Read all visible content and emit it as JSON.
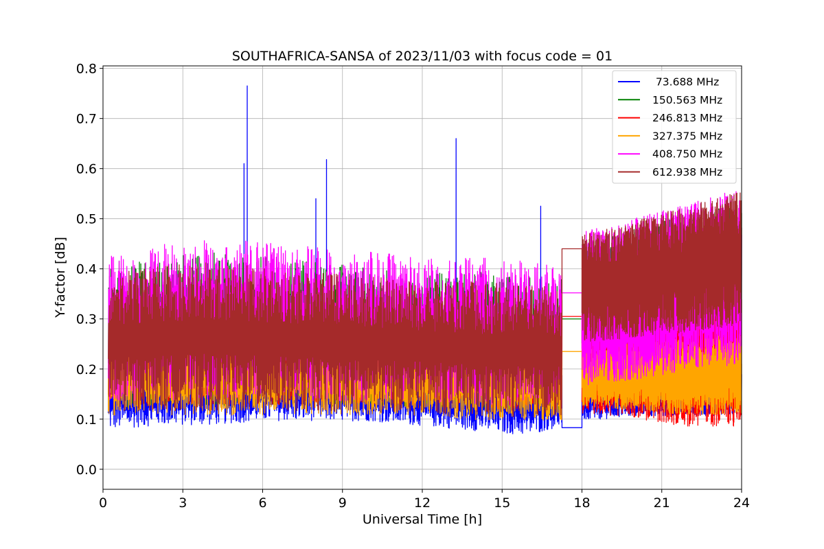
{
  "chart_data": {
    "type": "line",
    "title": "SOUTHAFRICA-SANSA of 2023/11/03 with focus code = 01",
    "xlabel": "Universal Time [h]",
    "ylabel": "Y-factor [dB]",
    "xlim": [
      0,
      24
    ],
    "ylim": [
      -0.04,
      0.805
    ],
    "xticks": [
      0,
      3,
      6,
      9,
      12,
      15,
      18,
      21,
      24
    ],
    "xtick_labels": [
      "0",
      "3",
      "6",
      "9",
      "12",
      "15",
      "18",
      "21",
      "24"
    ],
    "yticks": [
      0.0,
      0.1,
      0.2,
      0.3,
      0.4,
      0.5,
      0.6,
      0.7,
      0.8
    ],
    "ytick_labels": [
      "0.0",
      "0.1",
      "0.2",
      "0.3",
      "0.4",
      "0.5",
      "0.6",
      "0.7",
      "0.8"
    ],
    "grid": true,
    "legend_position": "top-right",
    "data_gap": [
      17.25,
      18.0
    ],
    "series": [
      {
        "name": " 73.688 MHz",
        "color": "#0000ff",
        "x": [
          0.2,
          2,
          4,
          6,
          8,
          10,
          12,
          14,
          16,
          17.25,
          18,
          20,
          22,
          24
        ],
        "low": [
          0.07,
          0.08,
          0.08,
          0.09,
          0.09,
          0.09,
          0.08,
          0.07,
          0.06,
          0.08,
          0.09,
          0.1,
          0.1,
          0.1
        ],
        "high": [
          0.22,
          0.23,
          0.23,
          0.22,
          0.22,
          0.21,
          0.21,
          0.2,
          0.2,
          0.2,
          0.21,
          0.22,
          0.23,
          0.24
        ],
        "spikes": [
          {
            "x": 5.3,
            "y": 0.61
          },
          {
            "x": 5.42,
            "y": 0.765
          },
          {
            "x": 8.0,
            "y": 0.54
          },
          {
            "x": 8.4,
            "y": 0.618
          },
          {
            "x": 13.27,
            "y": 0.66
          },
          {
            "x": 16.45,
            "y": 0.525
          }
        ],
        "gap_value": 0.083
      },
      {
        "name": "150.563 MHz",
        "color": "#008000",
        "x": [
          0.2,
          2,
          4,
          6,
          8,
          10,
          12,
          14,
          16,
          17.25,
          18,
          20,
          22,
          24
        ],
        "low": [
          0.1,
          0.11,
          0.11,
          0.11,
          0.11,
          0.11,
          0.1,
          0.1,
          0.1,
          0.1,
          0.12,
          0.12,
          0.12,
          0.13
        ],
        "high": [
          0.43,
          0.44,
          0.45,
          0.44,
          0.43,
          0.42,
          0.41,
          0.41,
          0.4,
          0.4,
          0.47,
          0.5,
          0.53,
          0.55
        ],
        "spikes": [],
        "gap_value": 0.3
      },
      {
        "name": "246.813 MHz",
        "color": "#ff0000",
        "x": [
          0.2,
          2,
          4,
          6,
          8,
          10,
          12,
          14,
          16,
          17.25,
          18,
          20,
          22,
          24
        ],
        "low": [
          0.12,
          0.12,
          0.12,
          0.12,
          0.12,
          0.12,
          0.12,
          0.11,
          0.11,
          0.11,
          0.1,
          0.09,
          0.07,
          0.07
        ],
        "high": [
          0.3,
          0.3,
          0.3,
          0.3,
          0.3,
          0.3,
          0.3,
          0.3,
          0.3,
          0.3,
          0.32,
          0.33,
          0.35,
          0.36
        ],
        "spikes": [],
        "gap_value": 0.305
      },
      {
        "name": "327.375 MHz",
        "color": "#ffa500",
        "x": [
          0.2,
          2,
          4,
          6,
          8,
          10,
          12,
          14,
          16,
          17.25,
          18,
          20,
          22,
          24
        ],
        "low": [
          0.1,
          0.1,
          0.1,
          0.1,
          0.1,
          0.1,
          0.1,
          0.09,
          0.09,
          0.09,
          0.12,
          0.11,
          0.1,
          0.1
        ],
        "high": [
          0.26,
          0.26,
          0.26,
          0.26,
          0.26,
          0.26,
          0.25,
          0.25,
          0.25,
          0.24,
          0.25,
          0.26,
          0.27,
          0.28
        ],
        "spikes": [],
        "gap_value": 0.235
      },
      {
        "name": "408.750 MHz",
        "color": "#ff00ff",
        "x": [
          0.2,
          2,
          4,
          6,
          8,
          10,
          12,
          14,
          16,
          17.25,
          18,
          20,
          22,
          24
        ],
        "low": [
          0.12,
          0.12,
          0.12,
          0.12,
          0.12,
          0.12,
          0.12,
          0.11,
          0.11,
          0.11,
          0.15,
          0.16,
          0.18,
          0.19
        ],
        "high": [
          0.45,
          0.47,
          0.48,
          0.47,
          0.46,
          0.45,
          0.44,
          0.44,
          0.43,
          0.42,
          0.49,
          0.52,
          0.55,
          0.58
        ],
        "spikes": [],
        "gap_value": 0.352
      },
      {
        "name": "612.938 MHz",
        "color": "#a52a2a",
        "x": [
          0.2,
          2,
          4,
          6,
          8,
          10,
          12,
          14,
          16,
          17.25,
          18,
          20,
          22,
          24
        ],
        "low": [
          0.1,
          0.1,
          0.1,
          0.1,
          0.1,
          0.1,
          0.1,
          0.09,
          0.09,
          0.09,
          0.24,
          0.25,
          0.26,
          0.27
        ],
        "high": [
          0.41,
          0.42,
          0.43,
          0.42,
          0.41,
          0.4,
          0.39,
          0.39,
          0.38,
          0.38,
          0.48,
          0.51,
          0.54,
          0.57
        ],
        "spikes": [],
        "gap_value": 0.44
      }
    ]
  }
}
